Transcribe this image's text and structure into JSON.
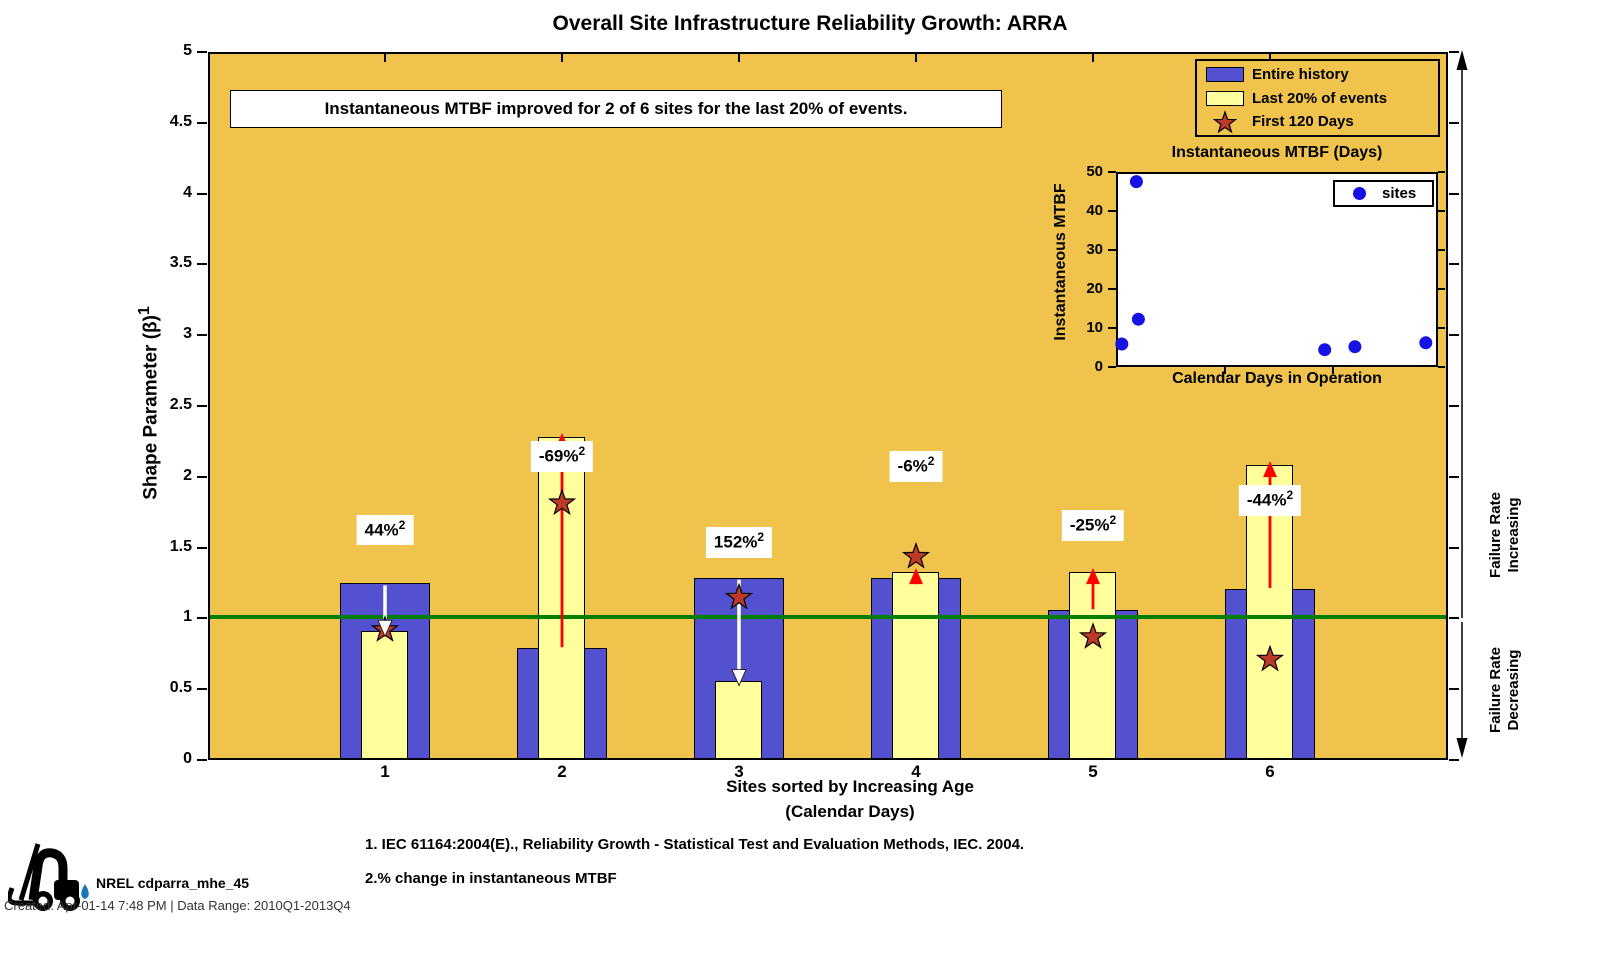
{
  "note_box": "Instantaneous MTBF improved for 2 of 6 sites for the last 20% of events.",
  "y_axis": {
    "label": "Shape Parameter (β)",
    "label_sup": "1",
    "ticks": [
      "0",
      "0.5",
      "1",
      "1.5",
      "2",
      "2.5",
      "3",
      "3.5",
      "4",
      "4.5",
      "5"
    ]
  },
  "x_axis": {
    "label_line1": "Sites sorted by Increasing Age",
    "label_line2": "(Calendar Days)"
  },
  "right_axis_labels": {
    "increasing_line1": "Failure Rate",
    "increasing_line2": "Increasing",
    "decreasing_line1": "Failure Rate",
    "decreasing_line2": "Decreasing"
  },
  "footnote_marker": "2",
  "chart_data": [
    {
      "type": "bar",
      "title": "Overall Site Infrastructure Reliability Growth: ARRA",
      "categories": [
        "1",
        "2",
        "3",
        "4",
        "5",
        "6"
      ],
      "series": [
        {
          "name": "Entire history",
          "marker": "bar-wide",
          "values": [
            1.24,
            0.78,
            1.28,
            1.28,
            1.05,
            1.2
          ]
        },
        {
          "name": "Last 20% of events",
          "marker": "bar-narrow",
          "values": [
            0.9,
            2.28,
            0.55,
            1.32,
            1.32,
            2.08
          ]
        },
        {
          "name": "First 120 Days",
          "marker": "star",
          "values": [
            0.91,
            1.81,
            1.14,
            1.43,
            0.86,
            0.7
          ]
        }
      ],
      "annotations": [
        {
          "text": "44%",
          "sup": "2",
          "arrow": "down",
          "label_y": 1.58
        },
        {
          "text": "-69%",
          "sup": "2",
          "arrow": "up",
          "label_y": 2.1
        },
        {
          "text": "152%",
          "sup": "2",
          "arrow": "down",
          "label_y": 1.49
        },
        {
          "text": "-6%",
          "sup": "2",
          "arrow": "up",
          "label_y": 2.03
        },
        {
          "text": "-25%",
          "sup": "2",
          "arrow": "up",
          "label_y": 1.61
        },
        {
          "text": "-44%",
          "sup": "2",
          "arrow": "up",
          "label_y": 1.79
        }
      ],
      "xlabel": "Sites sorted by Increasing Age (Calendar Days)",
      "ylabel": "Shape Parameter (β)1",
      "ylim": [
        0,
        5
      ],
      "reference_line_y": 1,
      "grid": false
    },
    {
      "type": "scatter",
      "title": "Instantaneous MTBF (Days)",
      "xlabel": "Calendar Days in Operation",
      "ylabel": "Instantaneous MTBF",
      "legend": "sites",
      "ylim": [
        0,
        50
      ],
      "yticks": [
        0,
        10,
        20,
        30,
        40,
        50
      ],
      "points": [
        {
          "x_frac": 0.012,
          "y": 5.5
        },
        {
          "x_frac": 0.058,
          "y": 48
        },
        {
          "x_frac": 0.064,
          "y": 12
        },
        {
          "x_frac": 0.65,
          "y": 4
        },
        {
          "x_frac": 0.745,
          "y": 4.8
        },
        {
          "x_frac": 0.968,
          "y": 5.8
        }
      ],
      "grid": false,
      "legend_position": "top-right"
    }
  ],
  "footnotes": [
    "1. IEC 61164:2004(E)., Reliability Growth - Statistical Test and Evaluation Methods, IEC. 2004.",
    "2.% change in instantaneous MTBF"
  ],
  "branding": {
    "name": "NREL cdparra_mhe_45"
  },
  "created_line": "Created: Apr-01-14  7:48 PM | Data Range: 2010Q1-2013Q4",
  "colors": {
    "plot_background": "#F0C34C",
    "entire_history_bar": "#5451D0",
    "last20_bar": "#FFFF9C",
    "reference_line": "#007E00",
    "up_arrow": "#FF0000",
    "down_arrow": "#FFFFFF",
    "star_fill": "#BE3A28",
    "inset_dot": "#1612E3",
    "droplet": "#1B75BB"
  }
}
